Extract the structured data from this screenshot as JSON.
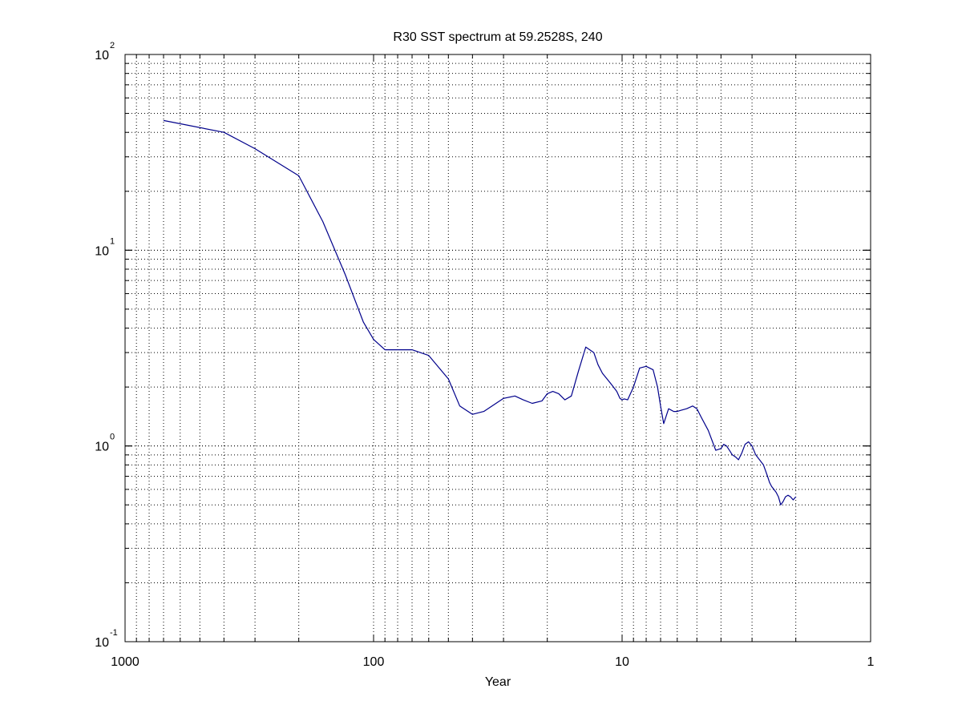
{
  "chart_data": {
    "type": "line",
    "title": "R30 SST spectrum at 59.2528S, 240",
    "xlabel": "Year",
    "ylabel": "",
    "x_scale": "log",
    "y_scale": "log",
    "x_reversed": true,
    "xlim": [
      1000,
      1
    ],
    "ylim": [
      0.1,
      100
    ],
    "x_ticks": [
      {
        "value": 1000,
        "label": "1000"
      },
      {
        "value": 100,
        "label": "100"
      },
      {
        "value": 10,
        "label": "10"
      },
      {
        "value": 1,
        "label": "1"
      }
    ],
    "y_ticks": [
      {
        "value": 0.1,
        "base": "10",
        "exp": "-1"
      },
      {
        "value": 1,
        "base": "10",
        "exp": "0"
      },
      {
        "value": 10,
        "base": "10",
        "exp": "1"
      },
      {
        "value": 100,
        "base": "10",
        "exp": "2"
      }
    ],
    "grid": true,
    "line_color": "#00008b",
    "series": [
      {
        "x": [
          700,
          400,
          300,
          200,
          160,
          130,
          110,
          100,
          90,
          80,
          70,
          60,
          50,
          45,
          40,
          36,
          30,
          27,
          25,
          23,
          21,
          20,
          19,
          18,
          17,
          16,
          15,
          14,
          13,
          12.5,
          12,
          11.5,
          11,
          10.5,
          10.2,
          10,
          9.8,
          9.5,
          9.0,
          8.5,
          8.0,
          7.5,
          7.2,
          7.0,
          6.8,
          6.5,
          6.2,
          6.0,
          5.8,
          5.5,
          5.2,
          5.0,
          4.8,
          4.5,
          4.2,
          4.0,
          3.9,
          3.8,
          3.7,
          3.6,
          3.5,
          3.4,
          3.3,
          3.2,
          3.1,
          3.0,
          2.9,
          2.8,
          2.7,
          2.65,
          2.6,
          2.55,
          2.5,
          2.45,
          2.4,
          2.35,
          2.3,
          2.25,
          2.2,
          2.15,
          2.1,
          2.05,
          2.0
        ],
        "y": [
          46,
          40,
          33,
          24,
          14,
          7.5,
          4.3,
          3.5,
          3.1,
          3.1,
          3.1,
          2.9,
          2.2,
          1.6,
          1.45,
          1.5,
          1.75,
          1.8,
          1.72,
          1.65,
          1.7,
          1.85,
          1.9,
          1.85,
          1.72,
          1.8,
          2.4,
          3.2,
          3.0,
          2.6,
          2.35,
          2.2,
          2.05,
          1.9,
          1.75,
          1.72,
          1.74,
          1.72,
          2.0,
          2.5,
          2.55,
          2.45,
          2.0,
          1.6,
          1.3,
          1.55,
          1.5,
          1.5,
          1.52,
          1.55,
          1.6,
          1.55,
          1.4,
          1.2,
          0.95,
          0.97,
          1.02,
          1.0,
          0.95,
          0.9,
          0.88,
          0.85,
          0.92,
          1.02,
          1.05,
          1.0,
          0.9,
          0.85,
          0.8,
          0.75,
          0.7,
          0.65,
          0.62,
          0.6,
          0.58,
          0.55,
          0.5,
          0.52,
          0.55,
          0.56,
          0.55,
          0.53,
          0.55
        ]
      }
    ]
  }
}
